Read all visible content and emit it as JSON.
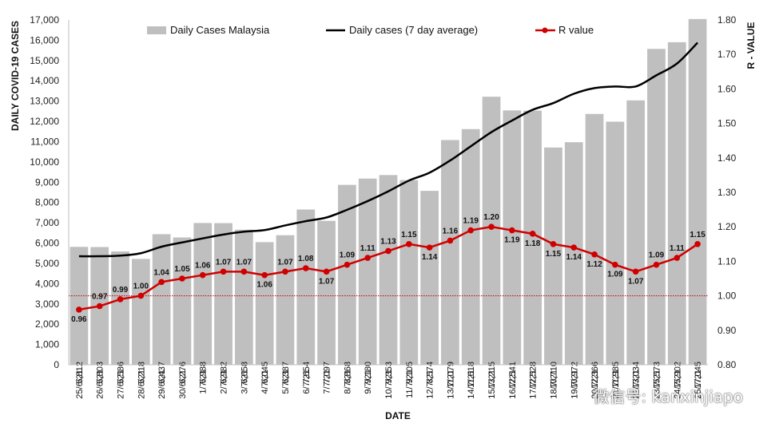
{
  "chart_data": {
    "type": "bar",
    "categories": [
      "25/6/21",
      "26/6/21",
      "27/6/21",
      "28/6/21",
      "29/6/21",
      "30/6/21",
      "1/7/21",
      "2/7/21",
      "3/7/21",
      "4/7/21",
      "5/7/21",
      "6/7/21",
      "7/7/21",
      "8/7/21",
      "9/7/21",
      "10/7/21",
      "11/7/21",
      "12/7/21",
      "13/7/21",
      "14/7/21",
      "15/7/21",
      "16/7/21",
      "17/7/21",
      "18/7/21",
      "19/7/21",
      "20/7/21",
      "21/7/21",
      "22/7/21",
      "23/7/21",
      "24/7/21",
      "25/7/21"
    ],
    "series": [
      {
        "name": "Daily Cases Malaysia",
        "type": "bar",
        "axis": "left",
        "color": "#bfbfbf",
        "values": [
          5812,
          5803,
          5586,
          5218,
          6437,
          6276,
          6988,
          6982,
          6658,
          6045,
          6387,
          7654,
          7097,
          8868,
          9180,
          9353,
          9105,
          8574,
          11079,
          11618,
          13215,
          12541,
          12528,
          10710,
          10972,
          12366,
          11985,
          13034,
          15573,
          15902,
          17045
        ],
        "labels": [
          "5,812",
          "5,803",
          "5,586",
          "5,218",
          "6,437",
          "6,276",
          "6,988",
          "6,982",
          "6,658",
          "6,045",
          "6,387",
          "7,654",
          "7,097",
          "8,868",
          "9,180",
          "9,353",
          "9,105",
          "8,574",
          "11,079",
          "11,618",
          "13,215",
          "12,541",
          "12,528",
          "10,710",
          "10,972",
          "12,366",
          "11,985",
          "13,034",
          "15,573",
          "15,902",
          "17,045"
        ]
      },
      {
        "name": "Daily cases (7 day average)",
        "type": "line",
        "axis": "left",
        "color": "#000000",
        "values": [
          5350,
          5350,
          5380,
          5500,
          5820,
          6030,
          6230,
          6420,
          6560,
          6640,
          6870,
          7080,
          7260,
          7640,
          8070,
          8550,
          9080,
          9470,
          10070,
          10770,
          11470,
          12040,
          12570,
          12900,
          13360,
          13640,
          13720,
          13720,
          14270,
          14850,
          15880
        ]
      },
      {
        "name": "R value",
        "type": "line",
        "axis": "right",
        "color": "#d00000",
        "values": [
          0.96,
          0.97,
          0.99,
          1.0,
          1.04,
          1.05,
          1.06,
          1.07,
          1.07,
          1.06,
          1.07,
          1.08,
          1.07,
          1.09,
          1.11,
          1.13,
          1.15,
          1.14,
          1.16,
          1.19,
          1.2,
          1.19,
          1.18,
          1.15,
          1.14,
          1.12,
          1.09,
          1.07,
          1.09,
          1.11,
          1.15
        ],
        "labels": [
          "0.96",
          "0.97",
          "0.99",
          "1.00",
          "1.04",
          "1.05",
          "1.06",
          "1.07",
          "1.07",
          "1.06",
          "1.07",
          "1.08",
          "1.07",
          "1.09",
          "1.11",
          "1.13",
          "1.15",
          "1.14",
          "1.16",
          "1.19",
          "1.20",
          "1.19",
          "1.18",
          "1.15",
          "1.14",
          "1.12",
          "1.09",
          "1.07",
          "1.09",
          "1.11",
          "1.15"
        ]
      }
    ],
    "reference_line": {
      "axis": "right",
      "value": 1.0,
      "color": "#c00000",
      "style": "dotted"
    },
    "xlabel": "DATE",
    "ylabel": "DAILY COVID-19 CASES",
    "y2label": "R - VALUE",
    "ylim": [
      0,
      17000
    ],
    "y2lim": [
      0.8,
      1.8
    ],
    "yticks": [
      "0",
      "1,000",
      "2,000",
      "3,000",
      "4,000",
      "5,000",
      "6,000",
      "7,000",
      "8,000",
      "9,000",
      "10,000",
      "11,000",
      "12,000",
      "13,000",
      "14,000",
      "15,000",
      "16,000",
      "17,000"
    ],
    "y2ticks": [
      "0.80",
      "0.90",
      "1.00",
      "1.10",
      "1.20",
      "1.30",
      "1.40",
      "1.50",
      "1.60",
      "1.70",
      "1.80"
    ],
    "grid": false,
    "legend": "top-center"
  },
  "watermark": "微信号: kanxinjiapo"
}
